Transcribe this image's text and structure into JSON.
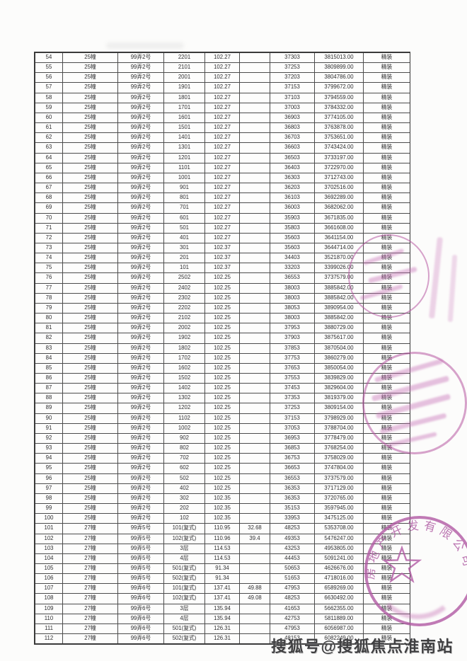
{
  "page": {
    "watermark": "搜狐号@搜狐焦点淮南站"
  },
  "table": {
    "rows": [
      [
        "54",
        "25幢",
        "99弄2号",
        "2201",
        "102.27",
        "",
        "37303",
        "3815013.00",
        "精装"
      ],
      [
        "55",
        "25幢",
        "99弄2号",
        "2101",
        "102.27",
        "",
        "37253",
        "3809899.00",
        "精装"
      ],
      [
        "56",
        "25幢",
        "99弄2号",
        "2001",
        "102.27",
        "",
        "37203",
        "3804786.00",
        "精装"
      ],
      [
        "57",
        "25幢",
        "99弄2号",
        "1901",
        "102.27",
        "",
        "37153",
        "3799672.00",
        "精装"
      ],
      [
        "58",
        "25幢",
        "99弄2号",
        "1801",
        "102.27",
        "",
        "37103",
        "3794559.00",
        "精装"
      ],
      [
        "59",
        "25幢",
        "99弄2号",
        "1701",
        "102.27",
        "",
        "37003",
        "3784332.00",
        "精装"
      ],
      [
        "60",
        "25幢",
        "99弄2号",
        "1601",
        "102.27",
        "",
        "36903",
        "3774105.00",
        "精装"
      ],
      [
        "61",
        "25幢",
        "99弄2号",
        "1501",
        "102.27",
        "",
        "36803",
        "3763878.00",
        "精装"
      ],
      [
        "62",
        "25幢",
        "99弄2号",
        "1401",
        "102.27",
        "",
        "36703",
        "3753651.00",
        "精装"
      ],
      [
        "63",
        "25幢",
        "99弄2号",
        "1301",
        "102.27",
        "",
        "36603",
        "3743424.00",
        "精装"
      ],
      [
        "64",
        "25幢",
        "99弄2号",
        "1201",
        "102.27",
        "",
        "36503",
        "3733197.00",
        "精装"
      ],
      [
        "65",
        "25幢",
        "99弄2号",
        "1101",
        "102.27",
        "",
        "36403",
        "3722970.00",
        "精装"
      ],
      [
        "66",
        "25幢",
        "99弄2号",
        "1001",
        "102.27",
        "",
        "36303",
        "3712743.00",
        "精装"
      ],
      [
        "67",
        "25幢",
        "99弄2号",
        "901",
        "102.27",
        "",
        "36203",
        "3702516.00",
        "精装"
      ],
      [
        "68",
        "25幢",
        "99弄2号",
        "801",
        "102.27",
        "",
        "36103",
        "3692289.00",
        "精装"
      ],
      [
        "69",
        "25幢",
        "99弄2号",
        "701",
        "102.27",
        "",
        "36003",
        "3682062.00",
        "精装"
      ],
      [
        "70",
        "25幢",
        "99弄2号",
        "601",
        "102.27",
        "",
        "35903",
        "3671835.00",
        "精装"
      ],
      [
        "71",
        "25幢",
        "99弄2号",
        "501",
        "102.27",
        "",
        "35803",
        "3661608.00",
        "精装"
      ],
      [
        "72",
        "25幢",
        "99弄2号",
        "401",
        "102.27",
        "",
        "35603",
        "3641154.00",
        "精装"
      ],
      [
        "73",
        "25幢",
        "99弄2号",
        "301",
        "102.37",
        "",
        "35603",
        "3644714.00",
        "精装"
      ],
      [
        "74",
        "25幢",
        "99弄2号",
        "201",
        "102.37",
        "",
        "34403",
        "3521870.00",
        "精装"
      ],
      [
        "75",
        "25幢",
        "99弄2号",
        "101",
        "102.37",
        "",
        "33203",
        "3399026.00",
        "精装"
      ],
      [
        "76",
        "25幢",
        "99弄2号",
        "2502",
        "102.25",
        "",
        "36553",
        "3737579.00",
        "精装"
      ],
      [
        "77",
        "25幢",
        "99弄2号",
        "2402",
        "102.25",
        "",
        "38003",
        "3885842.00",
        "精装"
      ],
      [
        "78",
        "25幢",
        "99弄2号",
        "2302",
        "102.25",
        "",
        "38003",
        "3885842.00",
        "精装"
      ],
      [
        "79",
        "25幢",
        "99弄2号",
        "2202",
        "102.25",
        "",
        "38053",
        "3890954.00",
        "精装"
      ],
      [
        "80",
        "25幢",
        "99弄2号",
        "2102",
        "102.25",
        "",
        "38003",
        "3885842.00",
        "精装"
      ],
      [
        "81",
        "25幢",
        "99弄2号",
        "2002",
        "102.25",
        "",
        "37953",
        "3880729.00",
        "精装"
      ],
      [
        "82",
        "25幢",
        "99弄2号",
        "1902",
        "102.25",
        "",
        "37903",
        "3875617.00",
        "精装"
      ],
      [
        "83",
        "25幢",
        "99弄2号",
        "1802",
        "102.25",
        "",
        "37853",
        "3870504.00",
        "精装"
      ],
      [
        "84",
        "25幢",
        "99弄2号",
        "1702",
        "102.25",
        "",
        "37753",
        "3860279.00",
        "精装"
      ],
      [
        "85",
        "25幢",
        "99弄2号",
        "1602",
        "102.25",
        "",
        "37653",
        "3850054.00",
        "精装"
      ],
      [
        "86",
        "25幢",
        "99弄2号",
        "1502",
        "102.25",
        "",
        "37553",
        "3839829.00",
        "精装"
      ],
      [
        "87",
        "25幢",
        "99弄2号",
        "1402",
        "102.25",
        "",
        "37453",
        "3829604.00",
        "精装"
      ],
      [
        "88",
        "25幢",
        "99弄2号",
        "1302",
        "102.25",
        "",
        "37353",
        "3819379.00",
        "精装"
      ],
      [
        "89",
        "25幢",
        "99弄2号",
        "1202",
        "102.25",
        "",
        "37253",
        "3809154.00",
        "精装"
      ],
      [
        "90",
        "25幢",
        "99弄2号",
        "1102",
        "102.25",
        "",
        "37153",
        "3798929.00",
        "精装"
      ],
      [
        "91",
        "25幢",
        "99弄2号",
        "1002",
        "102.25",
        "",
        "37053",
        "3788704.00",
        "精装"
      ],
      [
        "92",
        "25幢",
        "99弄2号",
        "902",
        "102.25",
        "",
        "36953",
        "3778479.00",
        "精装"
      ],
      [
        "93",
        "25幢",
        "99弄2号",
        "802",
        "102.25",
        "",
        "36853",
        "3768254.00",
        "精装"
      ],
      [
        "94",
        "25幢",
        "99弄2号",
        "702",
        "102.25",
        "",
        "36753",
        "3758029.00",
        "精装"
      ],
      [
        "95",
        "25幢",
        "99弄2号",
        "602",
        "102.25",
        "",
        "36653",
        "3747804.00",
        "精装"
      ],
      [
        "96",
        "25幢",
        "99弄2号",
        "502",
        "102.25",
        "",
        "36553",
        "3737579.00",
        "精装"
      ],
      [
        "97",
        "25幢",
        "99弄2号",
        "402",
        "102.25",
        "",
        "36353",
        "3717129.00",
        "精装"
      ],
      [
        "98",
        "25幢",
        "99弄2号",
        "302",
        "102.35",
        "",
        "36353",
        "3720765.00",
        "精装"
      ],
      [
        "99",
        "25幢",
        "99弄2号",
        "202",
        "102.35",
        "",
        "35153",
        "3597945.00",
        "精装"
      ],
      [
        "100",
        "25幢",
        "99弄2号",
        "102",
        "102.35",
        "",
        "33953",
        "3475125.00",
        "精装"
      ],
      [
        "101",
        "27幢",
        "99弄5号",
        "101(复式)",
        "110.95",
        "32.68",
        "48253",
        "5353708.00",
        "精装"
      ],
      [
        "102",
        "27幢",
        "99弄5号",
        "102(复式)",
        "110.96",
        "39.4",
        "49353",
        "5476247.00",
        "精装"
      ],
      [
        "103",
        "27幢",
        "99弄5号",
        "3层",
        "114.53",
        "",
        "43253",
        "4953805.00",
        "精装"
      ],
      [
        "104",
        "27幢",
        "99弄5号",
        "4层",
        "114.53",
        "",
        "44453",
        "5091241.00",
        "精装"
      ],
      [
        "105",
        "27幢",
        "99弄5号",
        "501(复式)",
        "91.34",
        "",
        "50653",
        "4626676.00",
        "精装"
      ],
      [
        "106",
        "27幢",
        "99弄5号",
        "502(复式)",
        "91.34",
        "",
        "51653",
        "4718016.00",
        "精装"
      ],
      [
        "107",
        "27幢",
        "99弄6号",
        "101(复式)",
        "137.41",
        "49.88",
        "47953",
        "6589269.00",
        "精装"
      ],
      [
        "108",
        "27幢",
        "99弄6号",
        "102(复式)",
        "137.41",
        "49.08",
        "48253",
        "6630492.00",
        "精装"
      ],
      [
        "109",
        "27幢",
        "99弄6号",
        "3层",
        "135.94",
        "",
        "41653",
        "5662355.00",
        "精装"
      ],
      [
        "110",
        "27幢",
        "99弄6号",
        "4层",
        "135.94",
        "",
        "42753",
        "5811889.00",
        "精装"
      ],
      [
        "111",
        "27幢",
        "99弄6号",
        "501(复式)",
        "126.31",
        "",
        "47953",
        "6056987.00",
        "精装"
      ],
      [
        "112",
        "27幢",
        "99弄6号",
        "502(复式)",
        "126.31",
        "",
        "48153",
        "6082249.00",
        "精装"
      ]
    ]
  },
  "stamps": {
    "seal_arc_text": "房地产开发有限公司"
  }
}
